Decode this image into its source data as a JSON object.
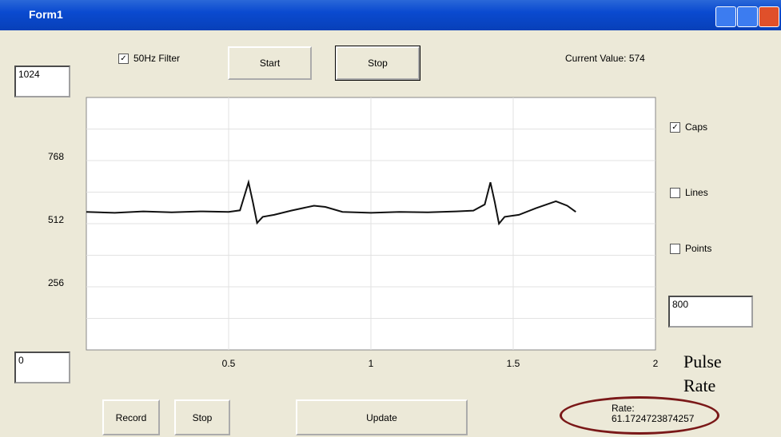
{
  "window": {
    "title": "Form1"
  },
  "filter_checkbox": {
    "label": "50Hz Filter",
    "checked": true
  },
  "buttons": {
    "start": "Start",
    "stop": "Stop",
    "record": "Record",
    "record_stop": "Stop",
    "update": "Update"
  },
  "current_value": {
    "label": "Current Value:",
    "value": 574
  },
  "options": [
    {
      "label": "Caps",
      "checked": true
    },
    {
      "label": "Lines",
      "checked": false
    },
    {
      "label": "Points",
      "checked": false
    }
  ],
  "sample_box": "800",
  "annotation": [
    "Pulse",
    "Rate"
  ],
  "rate": {
    "label": "Rate:",
    "value": "61.1724723874257"
  },
  "chart_data": {
    "type": "line",
    "x": [
      0,
      0.1,
      0.2,
      0.3,
      0.4,
      0.5,
      0.54,
      0.57,
      0.585,
      0.6,
      0.62,
      0.66,
      0.72,
      0.8,
      0.84,
      0.9,
      1.0,
      1.1,
      1.2,
      1.3,
      1.36,
      1.4,
      1.42,
      1.435,
      1.45,
      1.47,
      1.52,
      1.58,
      1.65,
      1.69,
      1.72
    ],
    "values": [
      560,
      556,
      562,
      558,
      562,
      560,
      566,
      680,
      600,
      515,
      540,
      548,
      565,
      585,
      580,
      560,
      556,
      560,
      558,
      562,
      565,
      590,
      680,
      600,
      512,
      540,
      548,
      575,
      603,
      585,
      560
    ],
    "color": "#111111",
    "xlim": [
      0,
      2
    ],
    "xticks": [
      0.5,
      1,
      1.5,
      2
    ],
    "ylim": [
      0,
      1024
    ],
    "yticks": [
      256,
      512,
      768
    ],
    "minor_grid": [
      128,
      384,
      640,
      896
    ],
    "grid": true
  }
}
